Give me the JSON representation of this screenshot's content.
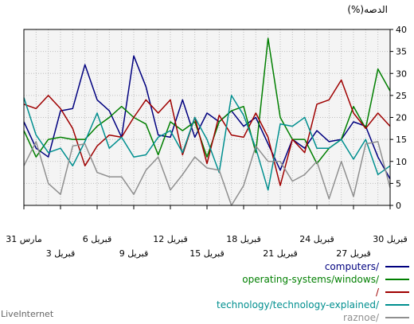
{
  "chart_data": {
    "type": "line",
    "title": "",
    "ylabel": "(%)الدصه",
    "xlabel": "",
    "ylim": [
      0,
      40
    ],
    "y_ticks": [
      0,
      5,
      10,
      15,
      20,
      25,
      30,
      35,
      40
    ],
    "grid": true,
    "legend_position": "bottom-right",
    "x_tick_labels": [
      {
        "i": 0,
        "label": "30 قبريل",
        "row": 1
      },
      {
        "i": 3,
        "label": "27 قبريل",
        "row": 2
      },
      {
        "i": 6,
        "label": "24 قبريل",
        "row": 1
      },
      {
        "i": 9,
        "label": "21 قبريل",
        "row": 2
      },
      {
        "i": 12,
        "label": "18 قبريل",
        "row": 1
      },
      {
        "i": 15,
        "label": "15 قبريل",
        "row": 2
      },
      {
        "i": 18,
        "label": "12 قبريل",
        "row": 1
      },
      {
        "i": 21,
        "label": "9 قبريل",
        "row": 2
      },
      {
        "i": 24,
        "label": "6 قبريل",
        "row": 1
      },
      {
        "i": 27,
        "label": "3 قبريل",
        "row": 2
      },
      {
        "i": 30,
        "label": "31 مارس",
        "row": 1
      }
    ],
    "series": [
      {
        "name": "computers/",
        "color": "#00007f",
        "values": [
          6,
          11,
          18,
          19,
          15,
          14.5,
          17,
          13,
          15,
          8,
          14,
          20,
          18,
          21.5,
          19,
          21,
          15.5,
          24,
          15.5,
          16,
          27,
          34,
          15.5,
          21.5,
          24,
          32,
          22,
          21.5,
          11,
          13,
          19
        ]
      },
      {
        "name": "operating-systems/windows/",
        "color": "#007f00",
        "values": [
          26,
          31,
          17.5,
          22.5,
          15,
          13,
          9.5,
          15,
          15,
          20,
          38,
          12,
          22.5,
          21.5,
          19,
          11,
          19,
          17,
          19,
          11.5,
          18.5,
          20,
          22.5,
          20,
          18,
          15,
          15,
          15.5,
          15,
          11,
          17
        ]
      },
      {
        "name": "/",
        "color": "#9f0000",
        "values": [
          18,
          21,
          17.5,
          21,
          28.5,
          24,
          23,
          12,
          15,
          4.5,
          15.5,
          21,
          15.5,
          16,
          20.5,
          9.5,
          20,
          11.5,
          24,
          21,
          24,
          20,
          15.5,
          16,
          13.5,
          9,
          17.5,
          22,
          25,
          22,
          23
        ]
      },
      {
        "name": "technology/technology-explained/",
        "color": "#008f8f",
        "values": [
          9,
          7,
          15,
          10.5,
          15,
          13,
          13,
          20,
          18,
          18.5,
          3.5,
          13,
          20.5,
          25,
          7.5,
          15,
          20,
          12,
          17,
          15.5,
          11.5,
          11,
          15.5,
          13,
          21,
          14.5,
          9,
          13,
          12,
          16,
          24.5
        ]
      },
      {
        "name": "raznoe/",
        "color": "#8f8f8f",
        "values": [
          4,
          14.5,
          14,
          2,
          10,
          1.5,
          10,
          7,
          5.5,
          10,
          10,
          13.5,
          4.5,
          0,
          8,
          8.5,
          11,
          7,
          3.5,
          11,
          8,
          2.5,
          6.5,
          6.5,
          7.5,
          14,
          13.5,
          2.5,
          5,
          14.5,
          9
        ]
      }
    ]
  },
  "watermark": "LiveInternet"
}
